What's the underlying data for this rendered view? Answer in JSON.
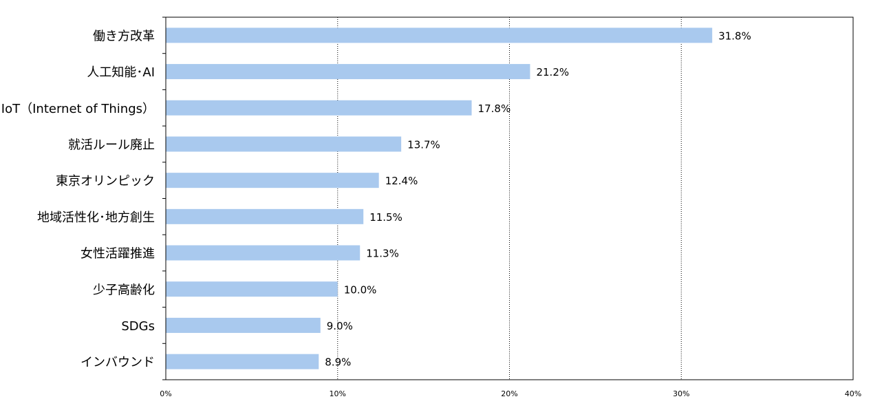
{
  "chart_data": {
    "type": "bar",
    "orientation": "horizontal",
    "categories": [
      "働き方改革",
      "人工知能･AI",
      "IoT（Internet of Things）",
      "就活ルール廃止",
      "東京オリンピック",
      "地域活性化･地方創生",
      "女性活躍推進",
      "少子高齢化",
      "SDGs",
      "インバウンド"
    ],
    "values": [
      31.8,
      21.2,
      17.8,
      13.7,
      12.4,
      11.5,
      11.3,
      10.0,
      9.0,
      8.9
    ],
    "value_labels": [
      "31.8%",
      "21.2%",
      "17.8%",
      "13.7%",
      "12.4%",
      "11.5%",
      "11.3%",
      "10.0%",
      "9.0%",
      "8.9%"
    ],
    "xlim": [
      0,
      40
    ],
    "xticks": [
      0,
      10,
      20,
      30,
      40
    ],
    "xtick_labels": [
      "0%",
      "10%",
      "20%",
      "30%",
      "40%"
    ],
    "grid": "vertical dotted",
    "bar_color": "#a9c9ee"
  }
}
